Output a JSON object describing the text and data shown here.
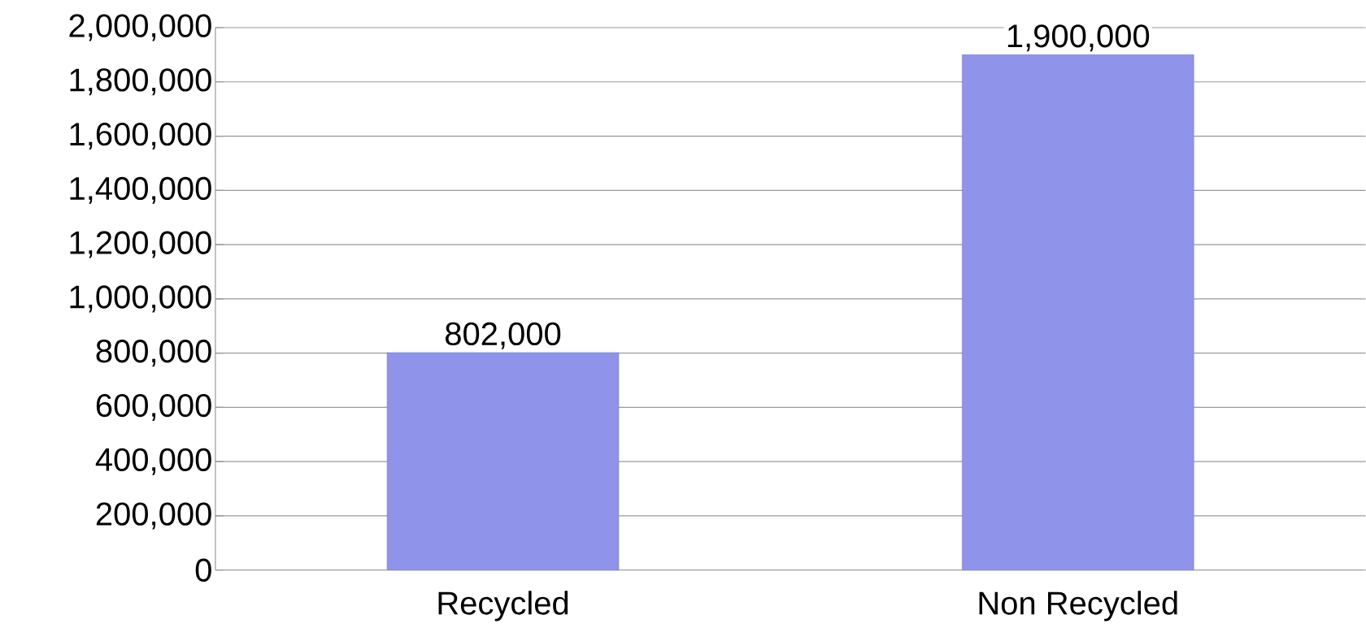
{
  "chart_data": {
    "type": "bar",
    "categories": [
      "Recycled",
      "Non Recycled"
    ],
    "values": [
      802000,
      1900000
    ],
    "color": "#8f93ea",
    "value_labels": [
      "802,000",
      "1,900,000"
    ],
    "ylim": [
      0,
      2000000
    ],
    "yticks": [
      0,
      {
        "value": 200000,
        "label": "200,000"
      },
      {
        "value": 400000,
        "label": "400,000"
      },
      {
        "value": 600000,
        "label": "600,000"
      },
      {
        "value": 800000,
        "label": "800,000"
      },
      {
        "value": 1000000,
        "label": "1,000,000"
      },
      {
        "value": 1200000,
        "label": "1,200,000"
      },
      {
        "value": 1400000,
        "label": "1,400,000"
      },
      {
        "value": 1600000,
        "label": "1,600,000"
      },
      {
        "value": 1800000,
        "label": "1,800,000"
      },
      {
        "value": 2000000,
        "label": "2,000,000"
      }
    ],
    "grid": "y"
  }
}
